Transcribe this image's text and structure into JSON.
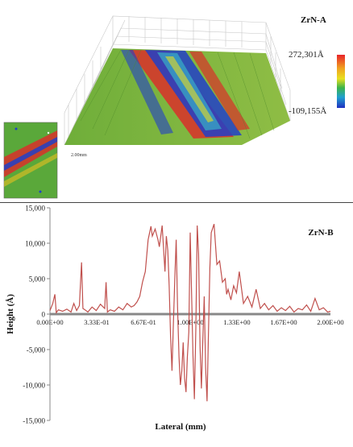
{
  "panel_a": {
    "label": "ZrN-A",
    "scale_max": "272,301Å",
    "scale_min": "-109,155Å",
    "axis_label": "2.00mm",
    "colors": {
      "high": "#d9302a",
      "mid": "#7fb23a",
      "low": "#2140c8"
    }
  },
  "chart_data": {
    "type": "line",
    "title": "ZrN-B",
    "xlabel": "Lateral (mm)",
    "ylabel": "Height (Å)",
    "xlim": [
      0,
      2.0
    ],
    "ylim": [
      -15000,
      15000
    ],
    "xticks": [
      "0.00E+00",
      "3.33E-01",
      "6.67E-01",
      "1.00E+00",
      "1.33E+00",
      "1.67E+00",
      "2.00E+00"
    ],
    "yticks": [
      "15,000",
      "10,000",
      "5,000",
      "0",
      "-5,000",
      "-10,000",
      "-15,000"
    ],
    "line_color": "#c0504d",
    "x": [
      0.0,
      0.02,
      0.035,
      0.045,
      0.06,
      0.09,
      0.12,
      0.15,
      0.17,
      0.19,
      0.21,
      0.225,
      0.235,
      0.25,
      0.27,
      0.3,
      0.33,
      0.36,
      0.39,
      0.4,
      0.41,
      0.43,
      0.46,
      0.49,
      0.52,
      0.55,
      0.58,
      0.6,
      0.62,
      0.64,
      0.66,
      0.68,
      0.7,
      0.72,
      0.73,
      0.75,
      0.77,
      0.78,
      0.8,
      0.82,
      0.83,
      0.84,
      0.85,
      0.86,
      0.87,
      0.88,
      0.89,
      0.9,
      0.91,
      0.92,
      0.93,
      0.94,
      0.95,
      0.96,
      0.97,
      0.98,
      0.99,
      1.0,
      1.01,
      1.02,
      1.03,
      1.04,
      1.05,
      1.06,
      1.07,
      1.08,
      1.09,
      1.1,
      1.11,
      1.12,
      1.13,
      1.14,
      1.15,
      1.17,
      1.19,
      1.21,
      1.23,
      1.25,
      1.26,
      1.27,
      1.29,
      1.31,
      1.33,
      1.35,
      1.38,
      1.41,
      1.44,
      1.47,
      1.5,
      1.53,
      1.56,
      1.59,
      1.62,
      1.65,
      1.68,
      1.71,
      1.74,
      1.77,
      1.8,
      1.83,
      1.86,
      1.89,
      1.92,
      1.95,
      1.98,
      2.0
    ],
    "y": [
      500,
      1500,
      2800,
      200,
      600,
      400,
      700,
      300,
      1500,
      500,
      1200,
      7300,
      800,
      600,
      300,
      1000,
      500,
      1400,
      800,
      4500,
      300,
      600,
      400,
      1000,
      600,
      1500,
      1000,
      1200,
      1700,
      2500,
      4500,
      6000,
      10500,
      12400,
      11000,
      12000,
      10500,
      9500,
      12500,
      6000,
      11000,
      9000,
      4000,
      -3000,
      -8000,
      -1500,
      5000,
      10500,
      1000,
      -6000,
      -10000,
      -8000,
      -4000,
      -9000,
      -11000,
      -6000,
      -2500,
      11500,
      3000,
      -6000,
      -12000,
      -2000,
      12500,
      8500,
      -4500,
      -10500,
      -3500,
      2500,
      -7500,
      -12300,
      -3000,
      6500,
      11500,
      12700,
      7000,
      7500,
      4500,
      5000,
      2800,
      3500,
      2000,
      4000,
      3000,
      6000,
      1500,
      2500,
      1000,
      3500,
      800,
      1500,
      600,
      1200,
      400,
      900,
      500,
      1100,
      300,
      800,
      600,
      1300,
      400,
      2200,
      600,
      900,
      300,
      400
    ]
  }
}
